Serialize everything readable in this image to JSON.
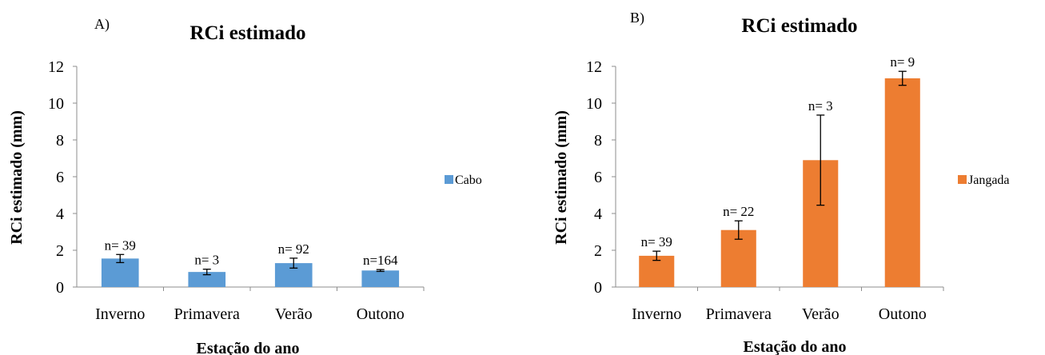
{
  "chart_data": [
    {
      "type": "bar",
      "panel_label": "A)",
      "title": "RCi estimado",
      "xlabel": "Estação do ano",
      "ylabel": "RCi  estimado (mm)",
      "ylim": [
        0,
        12
      ],
      "yticks": [
        "0",
        "2",
        "4",
        "6",
        "8",
        "10",
        "12"
      ],
      "grid": false,
      "legend": "right",
      "categories": [
        "Inverno",
        "Primavera",
        "Verão",
        "Outono"
      ],
      "series": [
        {
          "name": "Cabo",
          "color": "#5B9BD5",
          "values": [
            1.55,
            0.82,
            1.3,
            0.9
          ],
          "errors": [
            0.22,
            0.15,
            0.27,
            0.05
          ],
          "labels": [
            "n= 39",
            "n= 3",
            "n= 92",
            "n=164"
          ]
        }
      ]
    },
    {
      "type": "bar",
      "panel_label": "B)",
      "title": "RCi estimado",
      "xlabel": "Estação do ano",
      "ylabel": "RCi  estimado (mm)",
      "ylim": [
        0,
        12
      ],
      "yticks": [
        "0",
        "2",
        "4",
        "6",
        "8",
        "10",
        "12"
      ],
      "grid": false,
      "legend": "right",
      "categories": [
        "Inverno",
        "Primavera",
        "Verão",
        "Outono"
      ],
      "series": [
        {
          "name": "Jangada",
          "color": "#ED7D31",
          "values": [
            1.7,
            3.1,
            6.9,
            11.35
          ],
          "errors": [
            0.25,
            0.5,
            2.45,
            0.38
          ],
          "labels": [
            "n= 39",
            "n= 22",
            "n= 3",
            "n= 9"
          ]
        }
      ]
    }
  ]
}
